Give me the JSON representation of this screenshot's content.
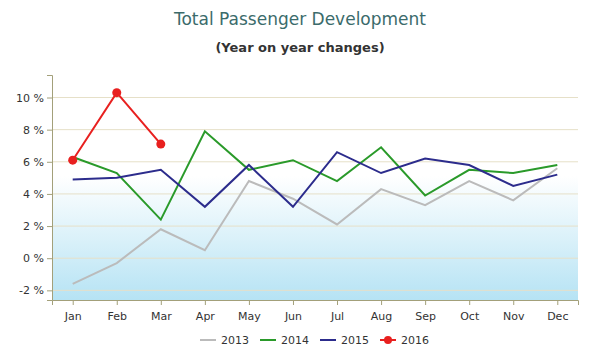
{
  "chart_data": {
    "type": "line",
    "title": "Total Passenger Development",
    "subtitle": "(Year on year changes)",
    "categories": [
      "Jan",
      "Feb",
      "Mar",
      "Apr",
      "May",
      "Jun",
      "Jul",
      "Aug",
      "Sep",
      "Oct",
      "Nov",
      "Dec"
    ],
    "series": [
      {
        "name": "2013",
        "color": "#bbbbbb",
        "marker": "none",
        "values": [
          -1.6,
          -0.3,
          1.8,
          0.5,
          4.8,
          3.7,
          2.1,
          4.3,
          3.3,
          4.8,
          3.6,
          5.6
        ]
      },
      {
        "name": "2014",
        "color": "#2a9a2a",
        "marker": "none",
        "values": [
          6.3,
          5.3,
          2.4,
          7.9,
          5.5,
          6.1,
          4.8,
          6.9,
          3.9,
          5.5,
          5.3,
          5.8
        ]
      },
      {
        "name": "2015",
        "color": "#2c2c8c",
        "marker": "none",
        "values": [
          4.9,
          5.0,
          5.5,
          3.2,
          5.8,
          3.2,
          6.6,
          5.3,
          6.2,
          5.8,
          4.5,
          5.2
        ]
      },
      {
        "name": "2016",
        "color": "#e8201f",
        "marker": "circle",
        "values": [
          6.1,
          10.3,
          7.1,
          null,
          null,
          null,
          null,
          null,
          null,
          null,
          null,
          null
        ]
      }
    ],
    "ylim": [
      -2.6,
      11.4
    ],
    "yticks": [
      {
        "value": -2,
        "label": "-2 %"
      },
      {
        "value": 0,
        "label": "0 %"
      },
      {
        "value": 2,
        "label": "2 %"
      },
      {
        "value": 4,
        "label": "4 %"
      },
      {
        "value": 6,
        "label": "6 %"
      },
      {
        "value": 8,
        "label": "8 %"
      },
      {
        "value": 10,
        "label": "10 %"
      }
    ],
    "grid": true,
    "legend": "bottom"
  }
}
